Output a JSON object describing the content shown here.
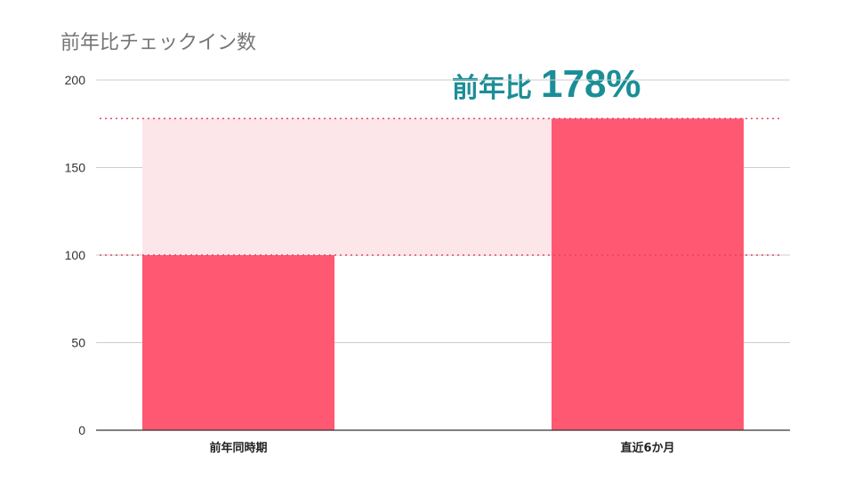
{
  "chart_title": "前年比チェックイン数",
  "callout": {
    "label": "前年比",
    "value": "178%"
  },
  "colors": {
    "bar": "#ff5872",
    "band": "#fde6ea",
    "grid": "#cccccc",
    "axis": "#333333",
    "dotted": "#e0435c",
    "callout": "#1a8e96"
  },
  "chart_data": {
    "type": "bar",
    "title": "前年比チェックイン数",
    "categories": [
      "前年同時期",
      "直近6か月"
    ],
    "values": [
      100,
      178
    ],
    "ylim": [
      0,
      200
    ],
    "yticks": [
      "0",
      "50",
      "100",
      "150",
      "200"
    ],
    "grid": true,
    "legend": "none",
    "reference_lines": [
      100,
      178
    ],
    "annotation": "前年比 178%"
  }
}
